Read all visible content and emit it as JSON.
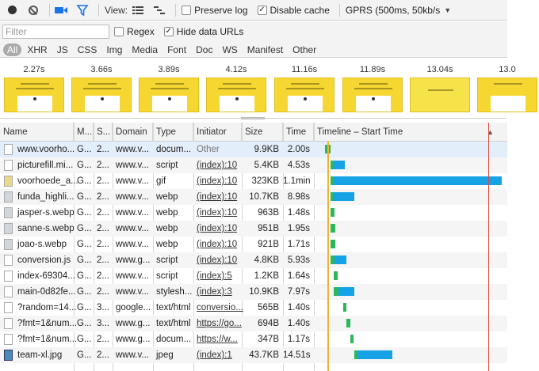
{
  "toolbar": {
    "view_label": "View:",
    "preserve_log": "Preserve log",
    "preserve_log_checked": false,
    "disable_cache": "Disable cache",
    "disable_cache_checked": true,
    "throttle": "GPRS (500ms, 50kb/s",
    "icons": [
      "record-icon",
      "clear-icon",
      "camera-icon",
      "filter-icon",
      "large-rows-icon",
      "overview-icon",
      "dropdown-arrow-icon"
    ]
  },
  "filter": {
    "placeholder": "Filter",
    "regex": "Regex",
    "regex_checked": false,
    "hide_data_urls": "Hide data URLs",
    "hide_data_urls_checked": true
  },
  "types": [
    "All",
    "XHR",
    "JS",
    "CSS",
    "Img",
    "Media",
    "Font",
    "Doc",
    "WS",
    "Manifest",
    "Other"
  ],
  "filmstrip": [
    {
      "time": "2.27s"
    },
    {
      "time": "3.66s"
    },
    {
      "time": "3.89s"
    },
    {
      "time": "4.12s"
    },
    {
      "time": "11.16s"
    },
    {
      "time": "11.89s"
    },
    {
      "time": "13.04s"
    },
    {
      "time": "13.0"
    }
  ],
  "columns": {
    "name": "Name",
    "method": "M...",
    "status": "S...",
    "domain": "Domain",
    "type": "Type",
    "initiator": "Initiator",
    "size": "Size",
    "time": "Time",
    "timeline": "Timeline – Start Time"
  },
  "colors": {
    "waiting": "#2bb75a",
    "receiving": "#16a3e6",
    "load_line": "#e2463e",
    "dom_line": "#f1b230"
  },
  "rows": [
    {
      "name": "www.voorho...",
      "method": "G...",
      "status": "2...",
      "domain": "www.v...",
      "type": "docum...",
      "initiator": "Other",
      "size": "9.9KB",
      "time": "2.00s",
      "icon": "document-icon",
      "start": 0.0,
      "wait": 2.0,
      "recv": 0.0
    },
    {
      "name": "picturefill.mi...",
      "method": "G...",
      "status": "2...",
      "domain": "www.v...",
      "type": "script",
      "initiator": "(index):10",
      "size": "5.4KB",
      "time": "4.53s",
      "icon": "script-file-icon",
      "start": 2.1,
      "wait": 0.4,
      "recv": 4.13
    },
    {
      "name": "voorhoede_a...",
      "method": "G...",
      "status": "2...",
      "domain": "www.v...",
      "type": "gif",
      "initiator": "(index):10",
      "size": "323KB",
      "time": "1.1min",
      "icon": "gif-file-icon",
      "start": 2.1,
      "wait": 0.4,
      "recv": 64.0
    },
    {
      "name": "funda_highli...",
      "method": "G...",
      "status": "2...",
      "domain": "www.v...",
      "type": "webp",
      "initiator": "(index):10",
      "size": "10.7KB",
      "time": "8.98s",
      "icon": "image-file-icon",
      "start": 2.1,
      "wait": 1.2,
      "recv": 7.78
    },
    {
      "name": "jasper-s.webp",
      "method": "G...",
      "status": "2...",
      "domain": "www.v...",
      "type": "webp",
      "initiator": "(index):10",
      "size": "963B",
      "time": "1.48s",
      "icon": "image-file-icon",
      "start": 2.1,
      "wait": 1.48,
      "recv": 0.0
    },
    {
      "name": "sanne-s.webp",
      "method": "G...",
      "status": "2...",
      "domain": "www.v...",
      "type": "webp",
      "initiator": "(index):10",
      "size": "951B",
      "time": "1.95s",
      "icon": "image-file-icon",
      "start": 2.1,
      "wait": 1.95,
      "recv": 0.0
    },
    {
      "name": "joao-s.webp",
      "method": "G...",
      "status": "2...",
      "domain": "www.v...",
      "type": "webp",
      "initiator": "(index):10",
      "size": "921B",
      "time": "1.71s",
      "icon": "image-file-icon",
      "start": 2.1,
      "wait": 1.71,
      "recv": 0.0
    },
    {
      "name": "conversion.js",
      "method": "G...",
      "status": "2...",
      "domain": "www.g...",
      "type": "script",
      "initiator": "(index):10",
      "size": "4.8KB",
      "time": "5.93s",
      "icon": "script-file-icon",
      "start": 2.1,
      "wait": 1.5,
      "recv": 4.43
    },
    {
      "name": "index-69304...",
      "method": "G...",
      "status": "2...",
      "domain": "www.v...",
      "type": "script",
      "initiator": "(index):5",
      "size": "1.2KB",
      "time": "1.64s",
      "icon": "script-file-icon",
      "start": 3.2,
      "wait": 1.64,
      "recv": 0.0
    },
    {
      "name": "main-0d82fe...",
      "method": "G...",
      "status": "2...",
      "domain": "www.v...",
      "type": "stylesh...",
      "initiator": "(index):3",
      "size": "10.9KB",
      "time": "7.97s",
      "icon": "stylesheet-file-icon",
      "start": 3.2,
      "wait": 1.8,
      "recv": 6.17
    },
    {
      "name": "?random=14...",
      "method": "G...",
      "status": "3...",
      "domain": "google...",
      "type": "text/html",
      "initiator": "conversio...",
      "size": "565B",
      "time": "1.40s",
      "icon": "document-icon",
      "start": 6.8,
      "wait": 1.4,
      "recv": 0.0
    },
    {
      "name": "?fmt=1&num...",
      "method": "G...",
      "status": "3...",
      "domain": "www.g...",
      "type": "text/html",
      "initiator": "https://go...",
      "size": "694B",
      "time": "1.40s",
      "icon": "document-icon",
      "start": 8.2,
      "wait": 1.4,
      "recv": 0.0
    },
    {
      "name": "?fmt=1&num...",
      "method": "G...",
      "status": "2...",
      "domain": "www.g...",
      "type": "docum...",
      "initiator": "https://w...",
      "size": "347B",
      "time": "1.17s",
      "icon": "document-icon",
      "start": 9.6,
      "wait": 1.17,
      "recv": 0.0
    },
    {
      "name": "team-xl.jpg",
      "method": "G...",
      "status": "2...",
      "domain": "www.v...",
      "type": "jpeg",
      "initiator": "(index):1",
      "size": "43.7KB",
      "time": "14.51s",
      "icon": "jpeg-file-icon",
      "start": 11.0,
      "wait": 1.0,
      "recv": 13.51
    }
  ],
  "timeline": {
    "total_seconds": 66.2,
    "dom_content_loaded": 2.1,
    "load": 66.2
  }
}
